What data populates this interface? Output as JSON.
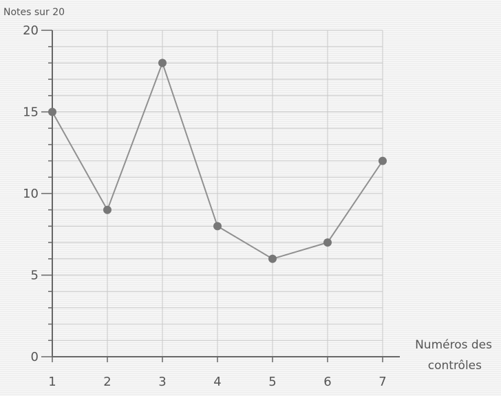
{
  "chart_data": {
    "type": "line",
    "ylabel": "Notes sur 20",
    "xlabel": [
      "Numéros des",
      "contrôles"
    ],
    "x": [
      1,
      2,
      3,
      4,
      5,
      6,
      7
    ],
    "xticks": [
      "1",
      "2",
      "3",
      "4",
      "5",
      "6",
      "7"
    ],
    "yticks": [
      "0",
      "5",
      "10",
      "15",
      "20"
    ],
    "ylim": [
      0,
      20
    ],
    "y_minor_step": 1,
    "series": [
      {
        "values": [
          15,
          9,
          18,
          8,
          6,
          7,
          12
        ]
      }
    ],
    "grid": true,
    "colors": {
      "line": "#909090",
      "marker": "#777777",
      "axis": "#666666",
      "grid": "#c8c8c8"
    }
  }
}
